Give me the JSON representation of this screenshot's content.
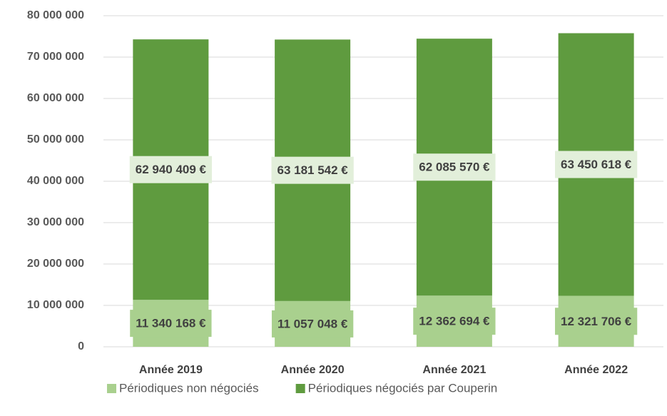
{
  "chart_data": {
    "type": "bar",
    "stacked": true,
    "categories": [
      "Année 2019",
      "Année 2020",
      "Année 2021",
      "Année 2022"
    ],
    "series": [
      {
        "name": "Périodiques non négociés",
        "color": "#a9d08e",
        "label_color": "#a9d08e",
        "values": [
          11340168,
          11057048,
          12362694,
          12321706
        ],
        "value_labels": [
          "11 340 168 €",
          "11 057 048 €",
          "12 362 694 €",
          "12 321 706 €"
        ]
      },
      {
        "name": "Périodiques négociés par Couperin",
        "color": "#5f9b3f",
        "label_color": "#e2efda",
        "values": [
          62940409,
          63181542,
          62085570,
          63450618
        ],
        "value_labels": [
          "62 940 409 €",
          "63 181 542 €",
          "62 085 570 €",
          "63 450 618 €"
        ]
      }
    ],
    "ylim": [
      0,
      80000000
    ],
    "yticks": [
      0,
      {
        "value": 10000000,
        "label": "10 000 000"
      },
      {
        "value": 20000000,
        "label": "20 000 000"
      },
      {
        "value": 30000000,
        "label": "30 000 000"
      },
      {
        "value": 40000000,
        "label": "40 000 000"
      },
      {
        "value": 50000000,
        "label": "50 000 000"
      },
      {
        "value": 60000000,
        "label": "60 000 000"
      },
      {
        "value": 70000000,
        "label": "70 000 000"
      },
      {
        "value": 80000000,
        "label": "80 000 000"
      }
    ],
    "grid": true,
    "legend": "bottom"
  }
}
